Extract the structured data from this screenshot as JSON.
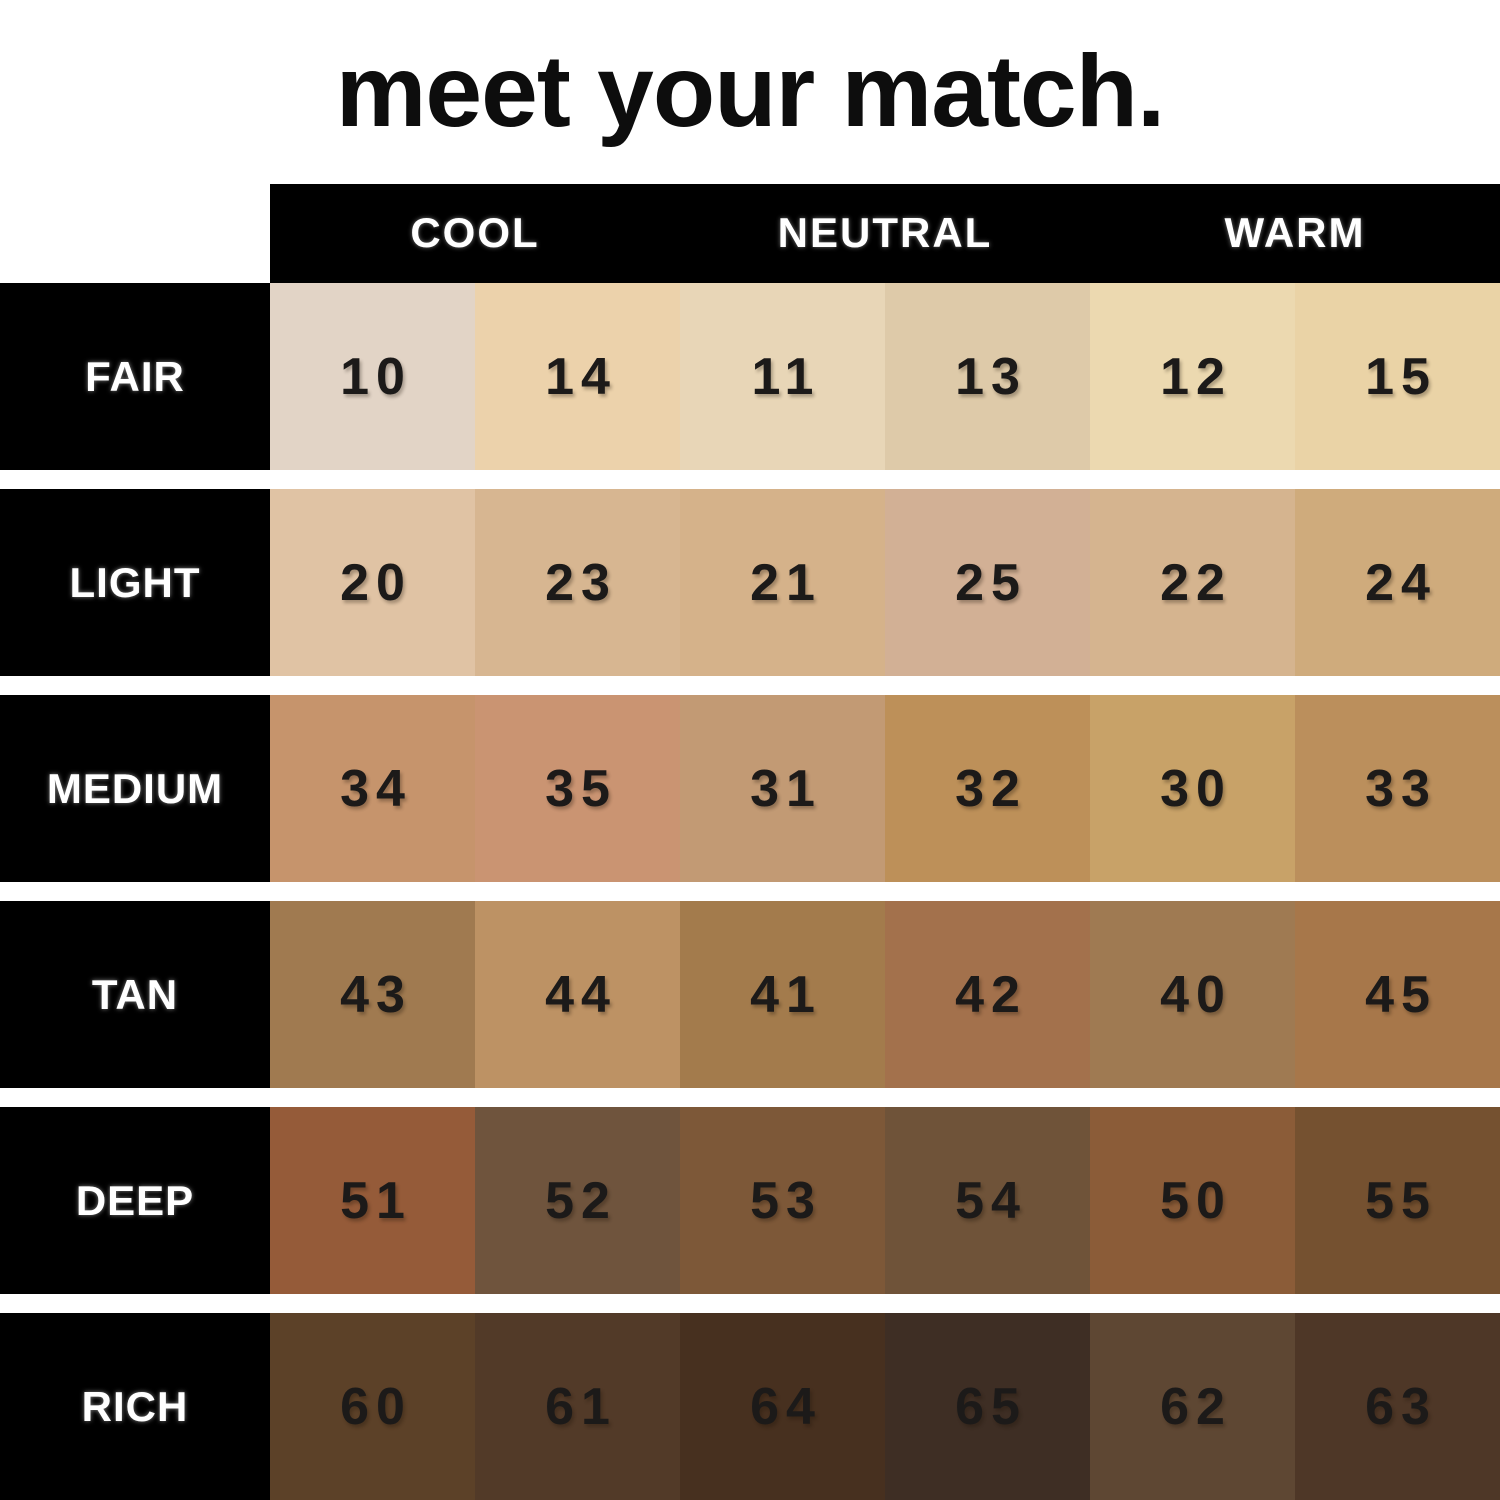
{
  "title": "meet your match.",
  "header": {
    "columns": [
      "COOL",
      "NEUTRAL",
      "WARM"
    ]
  },
  "table": {
    "row_labels": [
      "FAIR",
      "LIGHT",
      "MEDIUM",
      "TAN",
      "DEEP",
      "RICH"
    ],
    "rows": [
      {
        "label": "FAIR",
        "swatches": [
          {
            "shade": "10",
            "color": "#e2d4c6"
          },
          {
            "shade": "14",
            "color": "#ecd2ab"
          },
          {
            "shade": "11",
            "color": "#e8d6b7"
          },
          {
            "shade": "13",
            "color": "#decaa9"
          },
          {
            "shade": "12",
            "color": "#ecd9b0"
          },
          {
            "shade": "15",
            "color": "#ead3a6"
          }
        ]
      },
      {
        "label": "LIGHT",
        "swatches": [
          {
            "shade": "20",
            "color": "#e0c3a4"
          },
          {
            "shade": "23",
            "color": "#d7b691"
          },
          {
            "shade": "21",
            "color": "#d5b28a"
          },
          {
            "shade": "25",
            "color": "#d2b095"
          },
          {
            "shade": "22",
            "color": "#d5b48f"
          },
          {
            "shade": "24",
            "color": "#cfab7c"
          }
        ]
      },
      {
        "label": "MEDIUM",
        "swatches": [
          {
            "shade": "34",
            "color": "#c6946c"
          },
          {
            "shade": "35",
            "color": "#ca9472"
          },
          {
            "shade": "31",
            "color": "#c29a74"
          },
          {
            "shade": "32",
            "color": "#bd9059"
          },
          {
            "shade": "30",
            "color": "#c8a268"
          },
          {
            "shade": "33",
            "color": "#bb8f5c"
          }
        ]
      },
      {
        "label": "TAN",
        "swatches": [
          {
            "shade": "43",
            "color": "#a07a50"
          },
          {
            "shade": "44",
            "color": "#bd9264"
          },
          {
            "shade": "41",
            "color": "#a37b4c"
          },
          {
            "shade": "42",
            "color": "#a3714c"
          },
          {
            "shade": "40",
            "color": "#9f7a52"
          },
          {
            "shade": "45",
            "color": "#a7774a"
          }
        ]
      },
      {
        "label": "DEEP",
        "swatches": [
          {
            "shade": "51",
            "color": "#955b39"
          },
          {
            "shade": "52",
            "color": "#6f543d"
          },
          {
            "shade": "53",
            "color": "#7d5838"
          },
          {
            "shade": "54",
            "color": "#6f5339"
          },
          {
            "shade": "50",
            "color": "#8b5c38"
          },
          {
            "shade": "55",
            "color": "#755130"
          }
        ]
      },
      {
        "label": "RICH",
        "swatches": [
          {
            "shade": "60",
            "color": "#5c4128"
          },
          {
            "shade": "61",
            "color": "#523a28"
          },
          {
            "shade": "64",
            "color": "#47301f"
          },
          {
            "shade": "65",
            "color": "#3e2e24"
          },
          {
            "shade": "62",
            "color": "#5e4733"
          },
          {
            "shade": "63",
            "color": "#4e3727"
          }
        ]
      }
    ]
  },
  "colors": {
    "background": "#ffffff",
    "band": "#000000",
    "header_text": "#ffffff",
    "number_text": "#1c1a19"
  }
}
